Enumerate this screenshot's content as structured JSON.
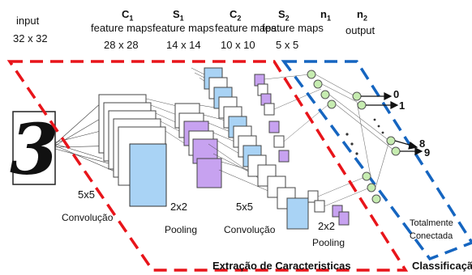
{
  "header": {
    "input": {
      "name": "input",
      "size": "32 x 32"
    },
    "c1": {
      "name": "C",
      "sub": "1",
      "desc": "feature maps",
      "size": "28 x 28"
    },
    "s1": {
      "name": "S",
      "sub": "1",
      "desc": "feature maps",
      "size": "14 x 14"
    },
    "c2": {
      "name": "C",
      "sub": "2",
      "desc": "feature maps",
      "size": "10 x 10"
    },
    "s2": {
      "name": "S",
      "sub": "2",
      "desc": "feature maps",
      "size": "5 x 5"
    },
    "n1": {
      "name": "n",
      "sub": "1"
    },
    "n2": {
      "name": "n",
      "sub": "2",
      "desc": "output"
    }
  },
  "input_digit": "3",
  "operations": {
    "conv1_kernel": "5x5",
    "conv1_label": "Convolução",
    "pool1_kernel": "2x2",
    "pool1_label": "Pooling",
    "conv2_kernel": "5x5",
    "conv2_label": "Convolução",
    "pool2_kernel": "2x2",
    "pool2_label": "Pooling",
    "fc_label_line1": "Totalmente",
    "fc_label_line2": "Conectada"
  },
  "outputs": [
    "0",
    "1",
    "8",
    "9"
  ],
  "sections": {
    "feature_extraction": "Extração de Caracteristicas",
    "classification": "Classificação"
  },
  "colors": {
    "feature_extraction_border": "#e8141a",
    "classification_border": "#1565c0",
    "conv_map": "#a9d3f5",
    "pool_map": "#c7a2f0",
    "neuron": "#c6ecb0"
  }
}
